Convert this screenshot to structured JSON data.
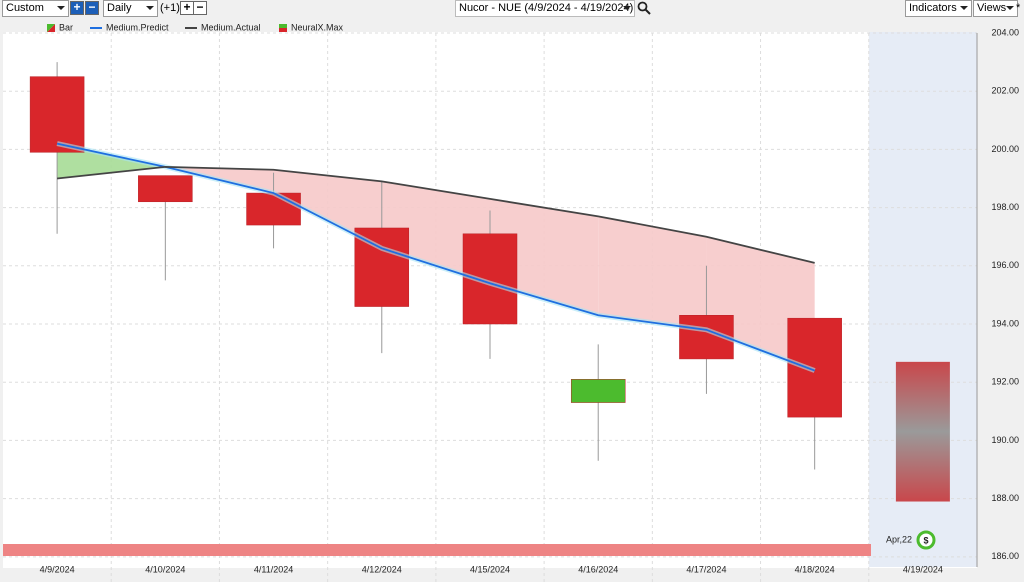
{
  "toolbar": {
    "period": "Custom",
    "interval": "Daily",
    "offset": "(+1)",
    "title": "Nucor - NUE (4/9/2024 - 4/19/2024)",
    "indicators": "Indicators",
    "views": "Views",
    "star": "*"
  },
  "chart_data": {
    "type": "candlestick",
    "categories": [
      "4/9/2024",
      "4/10/2024",
      "4/11/2024",
      "4/12/2024",
      "4/15/2024",
      "4/16/2024",
      "4/17/2024",
      "4/18/2024",
      "4/19/2024"
    ],
    "ohlc": {
      "name": "Bar",
      "up_color": "#4cbb2e",
      "down_color": "#d9262b",
      "open": [
        202.5,
        199.1,
        198.5,
        197.3,
        197.1,
        191.3,
        194.3,
        194.2,
        null
      ],
      "high": [
        203.0,
        199.1,
        199.2,
        198.9,
        197.9,
        193.3,
        196.0,
        194.2,
        null
      ],
      "low": [
        197.1,
        195.5,
        196.6,
        193.0,
        192.8,
        189.3,
        191.6,
        189.0,
        null
      ],
      "close": [
        199.9,
        198.2,
        197.4,
        194.6,
        194.0,
        192.1,
        192.8,
        190.8,
        null
      ]
    },
    "forecast": {
      "high": 192.7,
      "low": 187.9
    },
    "series": [
      {
        "name": "Medium.Predict",
        "color": "#1f6fe0",
        "values": [
          200.2,
          199.4,
          198.5,
          196.6,
          195.4,
          194.3,
          193.8,
          192.4,
          null
        ]
      },
      {
        "name": "Medium.Actual",
        "color": "#444444",
        "values": [
          199.0,
          199.4,
          199.3,
          198.9,
          198.3,
          197.7,
          197.0,
          196.1,
          null
        ]
      }
    ],
    "indicator": {
      "name": "NeuralX.Max"
    },
    "badge": {
      "label": "Apr,22",
      "icon": "$"
    },
    "ylim": [
      185.65,
      204
    ],
    "yticks": [
      {
        "value": 186,
        "label": "186.00"
      },
      {
        "value": 188,
        "label": "188.00"
      },
      {
        "value": 190,
        "label": "190.00"
      },
      {
        "value": 192,
        "label": "192.00"
      },
      {
        "value": 194,
        "label": "194.00"
      },
      {
        "value": 196,
        "label": "196.00"
      },
      {
        "value": 198,
        "label": "198.00"
      },
      {
        "value": 200,
        "label": "200.00"
      },
      {
        "value": 202,
        "label": "202.00"
      },
      {
        "value": 204,
        "label": "204.00"
      }
    ],
    "grid": true
  }
}
